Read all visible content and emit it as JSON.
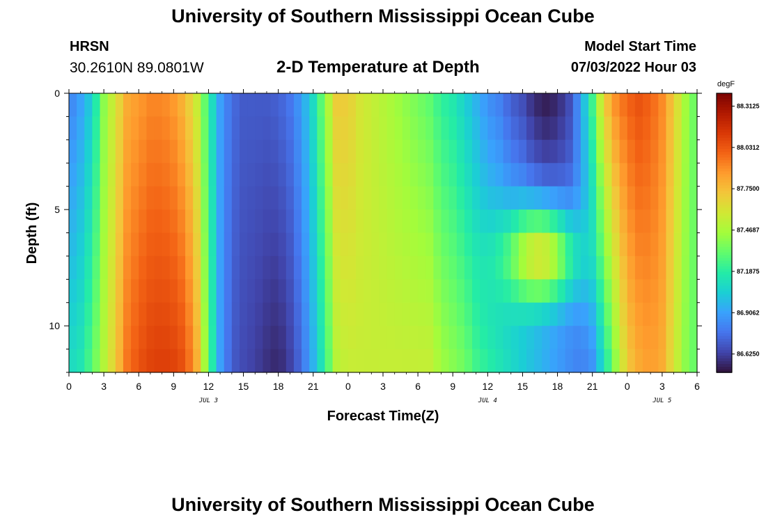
{
  "header": {
    "title": "University of Southern Mississippi Ocean Cube",
    "station": "HRSN",
    "coords": "30.2610N  89.0801W",
    "subtitle": "2-D Temperature at Depth",
    "model_start_label": "Model Start Time",
    "model_start_value": "07/03/2022 Hour 03"
  },
  "footer": {
    "title": "University of Southern Mississippi Ocean Cube"
  },
  "chart_data": {
    "type": "heatmap",
    "title": "2-D Temperature at Depth",
    "xlabel": "Forecast Time(Z)",
    "ylabel": "Depth (ft)",
    "x_hours": [
      0,
      3,
      6,
      9,
      12,
      15,
      18,
      21,
      24,
      27,
      30,
      33,
      36,
      39,
      42,
      45,
      48,
      51,
      54
    ],
    "x_tick_labels": [
      "0",
      "3",
      "6",
      "9",
      "12",
      "15",
      "18",
      "21",
      "0",
      "3",
      "6",
      "9",
      "12",
      "15",
      "18",
      "21",
      "0",
      "3",
      "6"
    ],
    "date_labels": [
      {
        "hour": 12,
        "label": "JUL 3"
      },
      {
        "hour": 36,
        "label": "JUL 4"
      },
      {
        "hour": 51,
        "label": "JUL 5"
      }
    ],
    "x_range_hours": [
      0,
      54
    ],
    "y_ticks": [
      0,
      5,
      10
    ],
    "y_range": [
      0,
      12
    ],
    "colorbar": {
      "unit": "degF",
      "min": 86.5,
      "max": 88.4,
      "labels": [
        "88.3125",
        "88.0312",
        "87.7500",
        "87.4687",
        "87.1875",
        "86.9062",
        "86.6250"
      ],
      "label_values": [
        88.3125,
        88.0312,
        87.75,
        87.4687,
        87.1875,
        86.9062,
        86.625
      ],
      "colormap": [
        "#30123b",
        "#4145ab",
        "#4675ed",
        "#39a2fc",
        "#1bcfd4",
        "#24eca6",
        "#61fc6c",
        "#a4fc3b",
        "#d1e834",
        "#f3c63a",
        "#fe9b2d",
        "#f36315",
        "#d93806",
        "#b11901",
        "#7a0402"
      ]
    },
    "time_profile": [
      {
        "h": 0,
        "s": 86.8,
        "b": 87.1
      },
      {
        "h": 1,
        "s": 86.9,
        "b": 87.15
      },
      {
        "h": 2,
        "s": 87.05,
        "b": 87.3
      },
      {
        "h": 3,
        "s": 87.4,
        "b": 87.5
      },
      {
        "h": 4,
        "s": 87.6,
        "b": 87.7
      },
      {
        "h": 5,
        "s": 87.8,
        "b": 87.95
      },
      {
        "h": 6,
        "s": 87.85,
        "b": 88.05
      },
      {
        "h": 7,
        "s": 87.9,
        "b": 88.1
      },
      {
        "h": 8,
        "s": 87.9,
        "b": 88.12
      },
      {
        "h": 9,
        "s": 87.85,
        "b": 88.1
      },
      {
        "h": 10,
        "s": 87.75,
        "b": 88.05
      },
      {
        "h": 11,
        "s": 87.55,
        "b": 87.8
      },
      {
        "h": 12,
        "s": 87.2,
        "b": 87.3
      },
      {
        "h": 13,
        "s": 86.9,
        "b": 86.9
      },
      {
        "h": 14,
        "s": 86.75,
        "b": 86.7
      },
      {
        "h": 15,
        "s": 86.7,
        "b": 86.65
      },
      {
        "h": 16,
        "s": 86.7,
        "b": 86.62
      },
      {
        "h": 17,
        "s": 86.7,
        "b": 86.58
      },
      {
        "h": 18,
        "s": 86.72,
        "b": 86.55
      },
      {
        "h": 19,
        "s": 86.78,
        "b": 86.62
      },
      {
        "h": 20,
        "s": 86.9,
        "b": 86.75
      },
      {
        "h": 21,
        "s": 87.1,
        "b": 86.95
      },
      {
        "h": 22,
        "s": 87.4,
        "b": 87.2
      },
      {
        "h": 23,
        "s": 87.7,
        "b": 87.5
      },
      {
        "h": 24,
        "s": 87.7,
        "b": 87.55
      },
      {
        "h": 25,
        "s": 87.6,
        "b": 87.55
      },
      {
        "h": 26,
        "s": 87.55,
        "b": 87.55
      },
      {
        "h": 27,
        "s": 87.5,
        "b": 87.55
      },
      {
        "h": 28,
        "s": 87.45,
        "b": 87.55
      },
      {
        "h": 29,
        "s": 87.4,
        "b": 87.55
      },
      {
        "h": 30,
        "s": 87.35,
        "b": 87.55
      },
      {
        "h": 31,
        "s": 87.3,
        "b": 87.55
      },
      {
        "h": 32,
        "s": 87.2,
        "b": 87.45
      },
      {
        "h": 33,
        "s": 87.15,
        "b": 87.4
      },
      {
        "h": 34,
        "s": 87.05,
        "b": 87.35
      },
      {
        "h": 35,
        "s": 86.95,
        "b": 87.25
      },
      {
        "h": 36,
        "s": 86.85,
        "b": 87.2
      },
      {
        "h": 37,
        "s": 86.8,
        "b": 87.15
      },
      {
        "h": 38,
        "s": 86.7,
        "b": 87.1
      },
      {
        "h": 39,
        "s": 86.65,
        "b": 87.05
      },
      {
        "h": 40,
        "s": 86.55,
        "b": 87.0
      },
      {
        "h": 41,
        "s": 86.52,
        "b": 86.95
      },
      {
        "h": 42,
        "s": 86.55,
        "b": 86.9
      },
      {
        "h": 43,
        "s": 86.65,
        "b": 86.85
      },
      {
        "h": 44,
        "s": 86.9,
        "b": 86.8
      },
      {
        "h": 45,
        "s": 87.25,
        "b": 86.85
      },
      {
        "h": 46,
        "s": 87.7,
        "b": 87.1
      },
      {
        "h": 47,
        "s": 87.9,
        "b": 87.4
      },
      {
        "h": 48,
        "s": 88.0,
        "b": 87.7
      },
      {
        "h": 49,
        "s": 88.05,
        "b": 87.8
      },
      {
        "h": 50,
        "s": 88.0,
        "b": 87.85
      },
      {
        "h": 51,
        "s": 87.9,
        "b": 87.8
      },
      {
        "h": 52,
        "s": 87.7,
        "b": 87.6
      },
      {
        "h": 53,
        "s": 87.45,
        "b": 87.4
      },
      {
        "h": 54,
        "s": 87.3,
        "b": 87.3
      }
    ],
    "warm_core": {
      "hour": 40.5,
      "depth": 7,
      "peak": 87.75
    }
  }
}
